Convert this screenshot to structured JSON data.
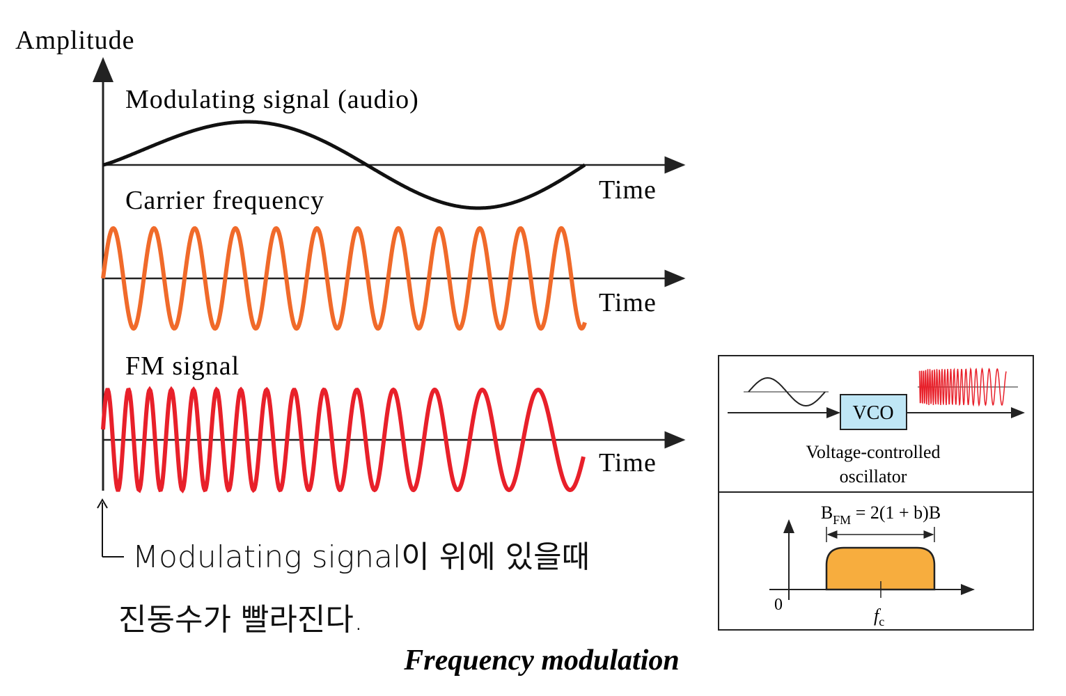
{
  "figure": {
    "axis_label": "Amplitude",
    "modulating_label": "Modulating signal (audio)",
    "carrier_label": "Carrier frequency",
    "fm_label": "FM signal",
    "time_labels": [
      "Time",
      "Time",
      "Time"
    ],
    "note_lines": [
      "Modulating signal이 위에 있을때",
      "진동수가 빨라진다."
    ],
    "caption": "Frequency modulation"
  },
  "inset": {
    "vco": "VCO",
    "vco_caption": [
      "Voltage-controlled",
      "oscillator"
    ],
    "bandwidth": {
      "symbol": "B",
      "subscript": "FM",
      "rest": " = 2(1 + b)B"
    },
    "origin": "0",
    "fc": {
      "symbol": "f",
      "subscript": "c"
    }
  }
}
